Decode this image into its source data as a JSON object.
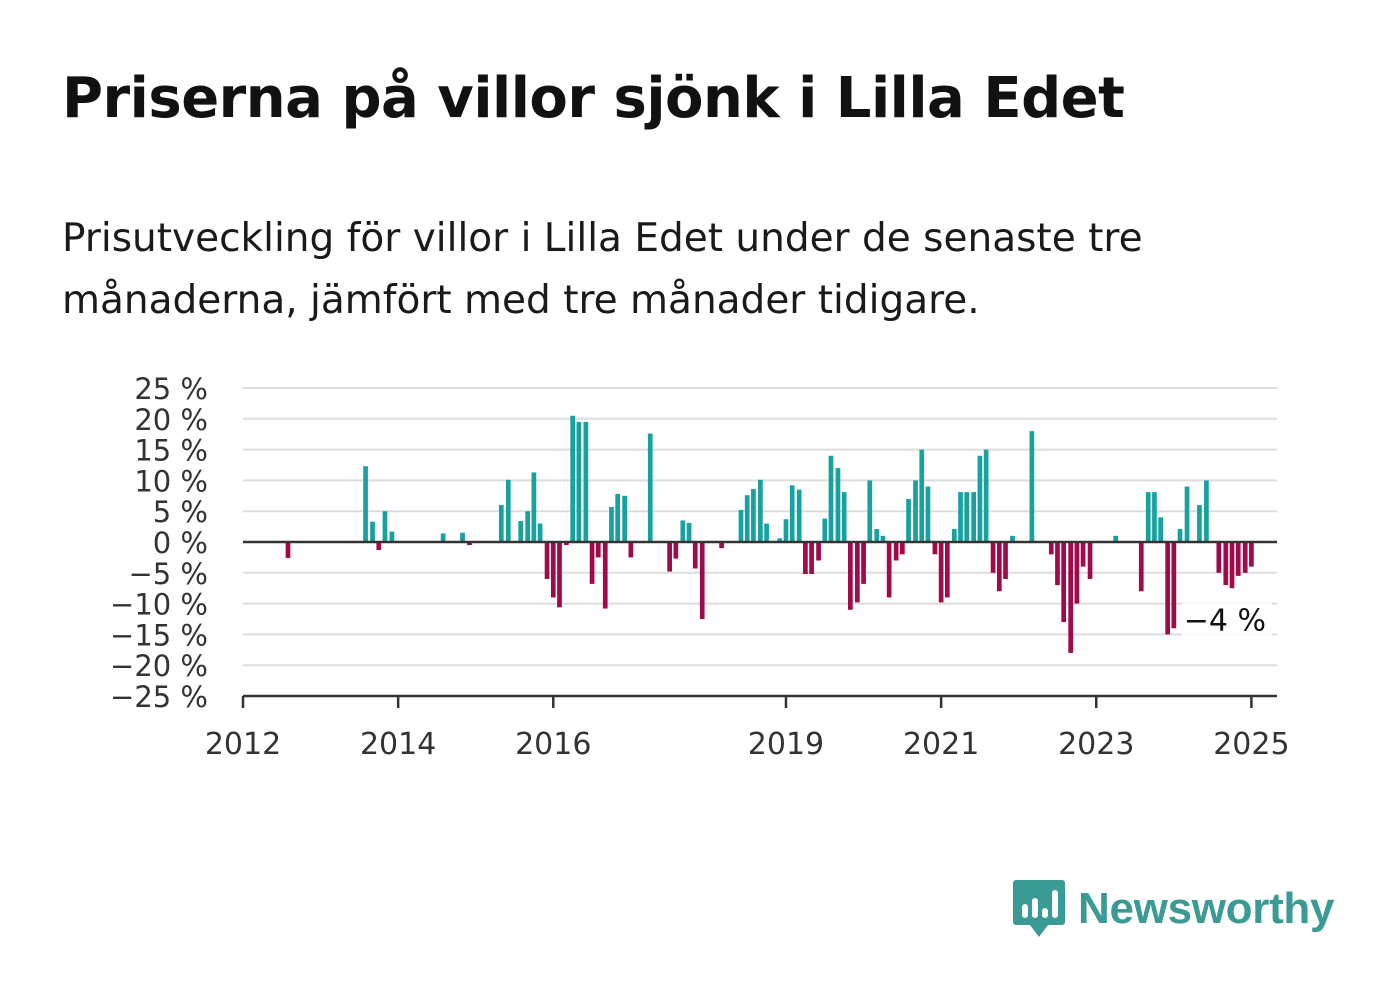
{
  "title": "Priserna på villor sjönk i Lilla Edet",
  "subtitle": "Prisutveckling för villor i Lilla Edet under de senaste tre månaderna, jämfört med tre månader tidigare.",
  "brand": {
    "name": "Newsworthy",
    "color": "#3a9a94"
  },
  "colors": {
    "positive": "#17a2a0",
    "negative": "#a0094a",
    "grid": "#dddddd",
    "axis": "#333333"
  },
  "chart_data": {
    "type": "bar",
    "title": "Priserna på villor sjönk i Lilla Edet",
    "xlabel": "",
    "ylabel": "",
    "ylim": [
      -25,
      25
    ],
    "yticks": [
      {
        "value": 25,
        "label": "25 %"
      },
      {
        "value": 20,
        "label": "20 %"
      },
      {
        "value": 15,
        "label": "15 %"
      },
      {
        "value": 10,
        "label": "10 %"
      },
      {
        "value": 5,
        "label": "5 %"
      },
      {
        "value": 0,
        "label": "0 %"
      },
      {
        "value": -5,
        "label": "−5 %"
      },
      {
        "value": -10,
        "label": "−10 %"
      },
      {
        "value": -15,
        "label": "−15 %"
      },
      {
        "value": -20,
        "label": "−20 %"
      },
      {
        "value": -25,
        "label": "−25 %"
      }
    ],
    "xlim": [
      2012,
      2025.33
    ],
    "xticks": [
      {
        "value": 2012,
        "label": "2012"
      },
      {
        "value": 2014,
        "label": "2014"
      },
      {
        "value": 2016,
        "label": "2016"
      },
      {
        "value": 2019,
        "label": "2019"
      },
      {
        "value": 2021,
        "label": "2021"
      },
      {
        "value": 2023,
        "label": "2023"
      },
      {
        "value": 2025,
        "label": "2025"
      }
    ],
    "grid": true,
    "legend": "none",
    "annotation": {
      "label": "−4 %",
      "x": 2024.95,
      "value": -4
    },
    "bars": [
      {
        "x": 2012.58,
        "value": -2.6
      },
      {
        "x": 2013.58,
        "value": 12.3
      },
      {
        "x": 2013.67,
        "value": 3.3
      },
      {
        "x": 2013.75,
        "value": -1.3
      },
      {
        "x": 2013.83,
        "value": 5.0
      },
      {
        "x": 2013.92,
        "value": 1.7
      },
      {
        "x": 2014.58,
        "value": 1.4
      },
      {
        "x": 2014.83,
        "value": 1.5
      },
      {
        "x": 2014.92,
        "value": -0.5
      },
      {
        "x": 2015.33,
        "value": 6.0
      },
      {
        "x": 2015.42,
        "value": 10.1
      },
      {
        "x": 2015.58,
        "value": 3.4
      },
      {
        "x": 2015.67,
        "value": 5.0
      },
      {
        "x": 2015.75,
        "value": 11.3
      },
      {
        "x": 2015.83,
        "value": 3.0
      },
      {
        "x": 2015.92,
        "value": -6.0
      },
      {
        "x": 2016.0,
        "value": -9.0
      },
      {
        "x": 2016.08,
        "value": -10.6
      },
      {
        "x": 2016.17,
        "value": -0.5
      },
      {
        "x": 2016.25,
        "value": 20.5
      },
      {
        "x": 2016.33,
        "value": 19.5
      },
      {
        "x": 2016.42,
        "value": 19.5
      },
      {
        "x": 2016.5,
        "value": -6.8
      },
      {
        "x": 2016.58,
        "value": -2.5
      },
      {
        "x": 2016.67,
        "value": -10.8
      },
      {
        "x": 2016.75,
        "value": 5.7
      },
      {
        "x": 2016.83,
        "value": 7.8
      },
      {
        "x": 2016.92,
        "value": 7.5
      },
      {
        "x": 2017.0,
        "value": -2.5
      },
      {
        "x": 2017.25,
        "value": 17.6
      },
      {
        "x": 2017.5,
        "value": -4.8
      },
      {
        "x": 2017.58,
        "value": -2.7
      },
      {
        "x": 2017.67,
        "value": 3.5
      },
      {
        "x": 2017.75,
        "value": 3.1
      },
      {
        "x": 2017.83,
        "value": -4.3
      },
      {
        "x": 2017.92,
        "value": -12.5
      },
      {
        "x": 2018.17,
        "value": -1.0
      },
      {
        "x": 2018.42,
        "value": 5.2
      },
      {
        "x": 2018.5,
        "value": 7.6
      },
      {
        "x": 2018.58,
        "value": 8.6
      },
      {
        "x": 2018.67,
        "value": 10.1
      },
      {
        "x": 2018.75,
        "value": 3.0
      },
      {
        "x": 2018.92,
        "value": 0.6
      },
      {
        "x": 2019.0,
        "value": 3.7
      },
      {
        "x": 2019.08,
        "value": 9.2
      },
      {
        "x": 2019.17,
        "value": 8.5
      },
      {
        "x": 2019.25,
        "value": -5.2
      },
      {
        "x": 2019.33,
        "value": -5.2
      },
      {
        "x": 2019.42,
        "value": -3.0
      },
      {
        "x": 2019.5,
        "value": 3.8
      },
      {
        "x": 2019.58,
        "value": 14.0
      },
      {
        "x": 2019.67,
        "value": 12.0
      },
      {
        "x": 2019.75,
        "value": 8.1
      },
      {
        "x": 2019.83,
        "value": -11.0
      },
      {
        "x": 2019.92,
        "value": -9.8
      },
      {
        "x": 2020.0,
        "value": -6.8
      },
      {
        "x": 2020.08,
        "value": 10.0
      },
      {
        "x": 2020.17,
        "value": 2.1
      },
      {
        "x": 2020.25,
        "value": 1.0
      },
      {
        "x": 2020.33,
        "value": -9.0
      },
      {
        "x": 2020.42,
        "value": -3.0
      },
      {
        "x": 2020.5,
        "value": -2.0
      },
      {
        "x": 2020.58,
        "value": 7.0
      },
      {
        "x": 2020.67,
        "value": 10.0
      },
      {
        "x": 2020.75,
        "value": 15.0
      },
      {
        "x": 2020.83,
        "value": 9.0
      },
      {
        "x": 2020.92,
        "value": -2.0
      },
      {
        "x": 2021.0,
        "value": -9.8
      },
      {
        "x": 2021.08,
        "value": -9.0
      },
      {
        "x": 2021.17,
        "value": 2.1
      },
      {
        "x": 2021.25,
        "value": 8.1
      },
      {
        "x": 2021.33,
        "value": 8.1
      },
      {
        "x": 2021.42,
        "value": 8.1
      },
      {
        "x": 2021.5,
        "value": 14.0
      },
      {
        "x": 2021.58,
        "value": 15.0
      },
      {
        "x": 2021.67,
        "value": -5.0
      },
      {
        "x": 2021.75,
        "value": -8.0
      },
      {
        "x": 2021.83,
        "value": -6.0
      },
      {
        "x": 2021.92,
        "value": 1.0
      },
      {
        "x": 2022.17,
        "value": 18.0
      },
      {
        "x": 2022.42,
        "value": -2.0
      },
      {
        "x": 2022.5,
        "value": -7.0
      },
      {
        "x": 2022.58,
        "value": -13.0
      },
      {
        "x": 2022.67,
        "value": -18.0
      },
      {
        "x": 2022.75,
        "value": -10.0
      },
      {
        "x": 2022.83,
        "value": -4.0
      },
      {
        "x": 2022.92,
        "value": -6.0
      },
      {
        "x": 2023.25,
        "value": 1.0
      },
      {
        "x": 2023.58,
        "value": -8.0
      },
      {
        "x": 2023.67,
        "value": 8.1
      },
      {
        "x": 2023.75,
        "value": 8.1
      },
      {
        "x": 2023.83,
        "value": 4.0
      },
      {
        "x": 2023.92,
        "value": -15.0
      },
      {
        "x": 2024.0,
        "value": -14.0
      },
      {
        "x": 2024.08,
        "value": 2.1
      },
      {
        "x": 2024.17,
        "value": 9.0
      },
      {
        "x": 2024.33,
        "value": 6.0
      },
      {
        "x": 2024.42,
        "value": 10.0
      },
      {
        "x": 2024.58,
        "value": -5.0
      },
      {
        "x": 2024.67,
        "value": -7.0
      },
      {
        "x": 2024.75,
        "value": -7.5
      },
      {
        "x": 2024.83,
        "value": -5.5
      },
      {
        "x": 2024.92,
        "value": -5.0
      },
      {
        "x": 2025.0,
        "value": -4.0
      }
    ]
  }
}
